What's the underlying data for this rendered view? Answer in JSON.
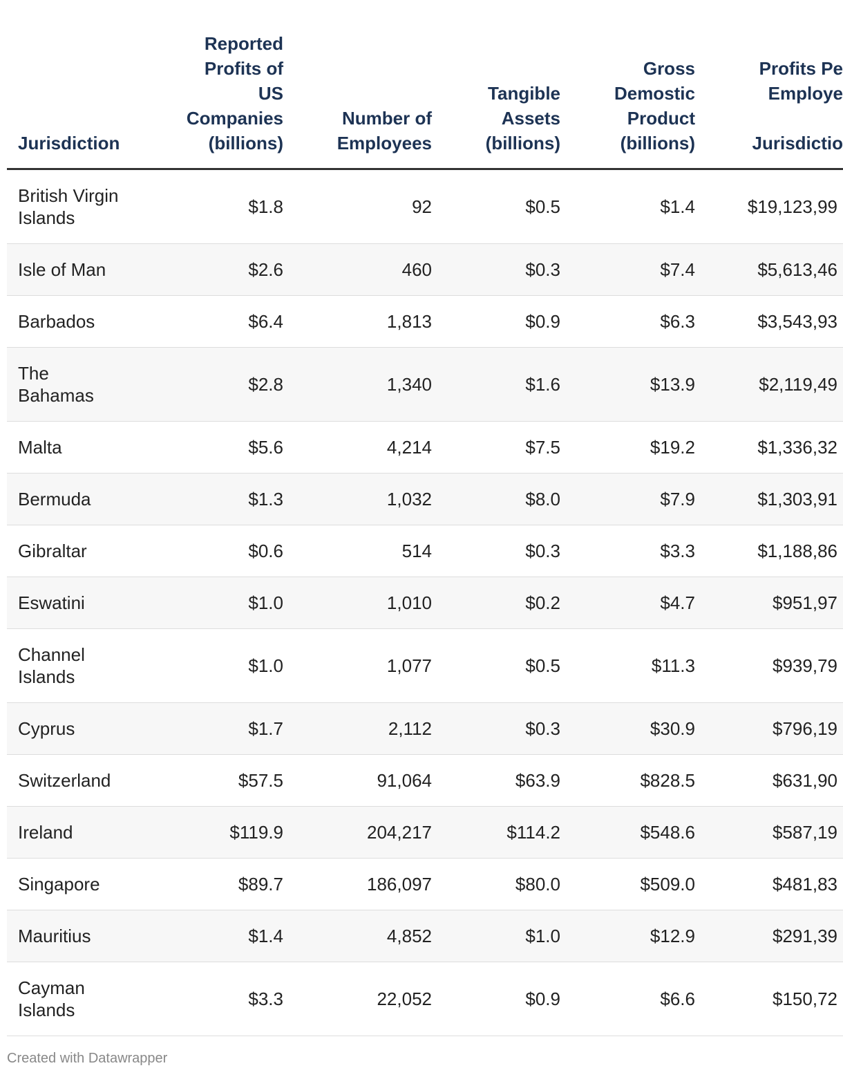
{
  "table": {
    "header": [
      "Jurisdiction",
      "Reported\nProfits of\nUS\nCompanies\n(billions)",
      "Number of\nEmployees",
      "Tangible\nAssets\n(billions)",
      "Gross\nDemostic\nProduct\n(billions)",
      "Profits Pe\nEmploye\n\nJurisdictio"
    ],
    "rows": [
      [
        "British Virgin\nIslands",
        "$1.8",
        "92",
        "$0.5",
        "$1.4",
        "$19,123,99"
      ],
      [
        "Isle of Man",
        "$2.6",
        "460",
        "$0.3",
        "$7.4",
        "$5,613,46"
      ],
      [
        "Barbados",
        "$6.4",
        "1,813",
        "$0.9",
        "$6.3",
        "$3,543,93"
      ],
      [
        "The\nBahamas",
        "$2.8",
        "1,340",
        "$1.6",
        "$13.9",
        "$2,119,49"
      ],
      [
        "Malta",
        "$5.6",
        "4,214",
        "$7.5",
        "$19.2",
        "$1,336,32"
      ],
      [
        "Bermuda",
        "$1.3",
        "1,032",
        "$8.0",
        "$7.9",
        "$1,303,91"
      ],
      [
        "Gibraltar",
        "$0.6",
        "514",
        "$0.3",
        "$3.3",
        "$1,188,86"
      ],
      [
        "Eswatini",
        "$1.0",
        "1,010",
        "$0.2",
        "$4.7",
        "$951,97"
      ],
      [
        "Channel\nIslands",
        "$1.0",
        "1,077",
        "$0.5",
        "$11.3",
        "$939,79"
      ],
      [
        "Cyprus",
        "$1.7",
        "2,112",
        "$0.3",
        "$30.9",
        "$796,19"
      ],
      [
        "Switzerland",
        "$57.5",
        "91,064",
        "$63.9",
        "$828.5",
        "$631,90"
      ],
      [
        "Ireland",
        "$119.9",
        "204,217",
        "$114.2",
        "$548.6",
        "$587,19"
      ],
      [
        "Singapore",
        "$89.7",
        "186,097",
        "$80.0",
        "$509.0",
        "$481,83"
      ],
      [
        "Mauritius",
        "$1.4",
        "4,852",
        "$1.0",
        "$12.9",
        "$291,39"
      ],
      [
        "Cayman\nIslands",
        "$3.3",
        "22,052",
        "$0.9",
        "$6.6",
        "$150,72"
      ]
    ]
  },
  "footer": "Created with Datawrapper"
}
